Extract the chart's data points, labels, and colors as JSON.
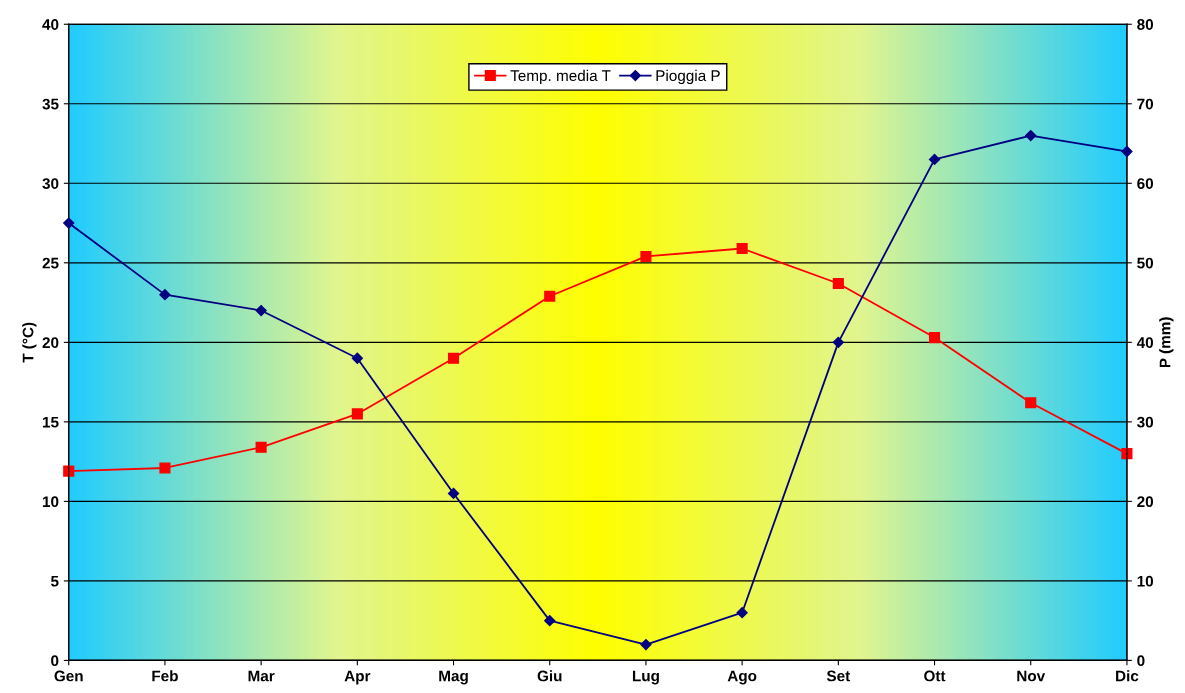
{
  "chart_data": {
    "type": "line",
    "ylabel": "T (°C)",
    "y2label": "P (mm)",
    "categories": [
      "Gen",
      "Feb",
      "Mar",
      "Apr",
      "Mag",
      "Giu",
      "Lug",
      "Ago",
      "Set",
      "Ott",
      "Nov",
      "Dic"
    ],
    "series": [
      {
        "name": "Temp. media T",
        "color": "#ff0000",
        "marker": "square",
        "values": [
          11.9,
          12.1,
          13.4,
          15.5,
          19.0,
          22.9,
          25.4,
          25.9,
          23.7,
          20.3,
          16.2,
          13.0
        ]
      },
      {
        "name": "Pioggia P",
        "color": "#000080",
        "marker": "diamond",
        "axis": "y2",
        "values": [
          55,
          46,
          44,
          38,
          21,
          5,
          2,
          6,
          40,
          63,
          66,
          64
        ]
      }
    ],
    "ylim": [
      0,
      40
    ],
    "yticks": [
      0,
      5,
      10,
      15,
      20,
      25,
      30,
      35,
      40
    ],
    "y2lim": [
      0,
      80
    ],
    "y2ticks": [
      0,
      10,
      20,
      30,
      40,
      50,
      60,
      70,
      80
    ],
    "grid": "y",
    "legend": "top",
    "line_style": "solid"
  }
}
